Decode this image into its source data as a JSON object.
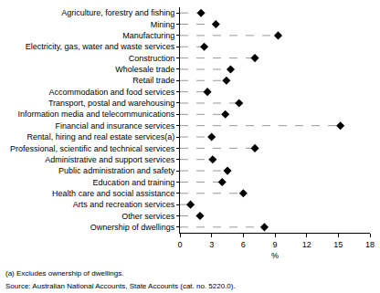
{
  "chart_data": {
    "type": "dot",
    "orientation": "horizontal",
    "categories": [
      "Agriculture, forestry and fishing",
      "Mining",
      "Manufacturing",
      "Electricity, gas, water and waste services",
      "Construction",
      "Wholesale trade",
      "Retail trade",
      "Accommodation and food services",
      "Transport, postal and warehousing",
      "Information media and telecommunications",
      "Financial and insurance services",
      "Rental, hiring and real estate services(a)",
      "Professional, scientific and technical services",
      "Administrative and support services",
      "Public administration and safety",
      "Education and training",
      "Health care and social assistance",
      "Arts and recreation services",
      "Other services",
      "Ownership of dwellings"
    ],
    "values": [
      2.0,
      3.4,
      9.3,
      2.3,
      7.1,
      4.8,
      4.4,
      2.6,
      5.6,
      4.3,
      15.2,
      3.0,
      7.1,
      3.1,
      4.5,
      4.0,
      6.0,
      1.0,
      1.9,
      8.0
    ],
    "color": "#000000",
    "marker": "diamond",
    "line_style": "dash",
    "x_label": "%",
    "xlim": [
      0,
      18
    ],
    "xticks": [
      0,
      3,
      6,
      9,
      12,
      15,
      18
    ],
    "grid": false,
    "annotations": [
      "(a) Excludes ownership of dwellings.",
      "Source: Australian National Accounts, State Accounts (cat. no. 5220.0)."
    ]
  }
}
